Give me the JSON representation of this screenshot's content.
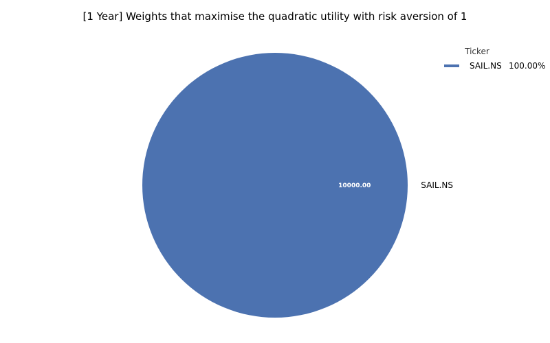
{
  "chart_data": {
    "type": "pie",
    "title": "[1 Year] Weights that maximise the quadratic utility with risk aversion of 1",
    "categories": [
      "SAIL.NS"
    ],
    "values": [
      10000.0
    ],
    "value_labels": [
      "10000.00"
    ],
    "colors": [
      "#4c72b0"
    ],
    "legend": {
      "title": "Ticker",
      "placement": "top-right",
      "entries": [
        {
          "label": "SAIL.NS",
          "percent": "100.00%"
        }
      ]
    }
  }
}
